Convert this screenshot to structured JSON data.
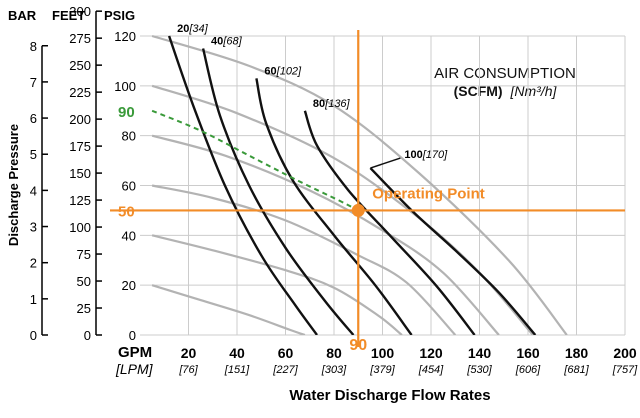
{
  "chart_data": {
    "type": "line",
    "title": "AIR CONSUMPTION",
    "subtitle_unit": "(SCFM)",
    "subtitle_metric": "[Nm³/h]",
    "xlabel": "Water Discharge Flow Rates",
    "ylabel": "Discharge Pressure",
    "x_unit_label": "GPM",
    "x_metric_unit_label": "[LPM]",
    "x_range": [
      0,
      200
    ],
    "y_range_psig": [
      0,
      120
    ],
    "x_ticks": [
      {
        "gpm": 20,
        "lpm": "[76]"
      },
      {
        "gpm": 40,
        "lpm": "[151]"
      },
      {
        "gpm": 60,
        "lpm": "[227]"
      },
      {
        "gpm": 80,
        "lpm": "[303]"
      },
      {
        "gpm": 100,
        "lpm": "[379]"
      },
      {
        "gpm": 120,
        "lpm": "[454]"
      },
      {
        "gpm": 140,
        "lpm": "[530]"
      },
      {
        "gpm": 160,
        "lpm": "[606]"
      },
      {
        "gpm": 180,
        "lpm": "[681]"
      },
      {
        "gpm": 200,
        "lpm": "[757]"
      }
    ],
    "psig_ticks": [
      0,
      20,
      40,
      60,
      80,
      100,
      120
    ],
    "side_axes": [
      {
        "title": "BAR",
        "max": 8.27,
        "ticks": [
          0,
          1,
          2,
          3,
          4,
          5,
          6,
          7,
          8
        ]
      },
      {
        "title": "FEET",
        "max": 277,
        "ticks": [
          0,
          25,
          50,
          75,
          100,
          125,
          150,
          175,
          200,
          225,
          250,
          275,
          300
        ]
      },
      {
        "title": "PSIG",
        "max": 120,
        "ticks": []
      }
    ],
    "pressure_curves": [
      {
        "psig": 120,
        "points": [
          [
            5,
            120
          ],
          [
            45,
            108
          ],
          [
            80,
            92
          ],
          [
            115,
            65
          ],
          [
            152,
            30
          ],
          [
            176,
            0
          ]
        ]
      },
      {
        "psig": 100,
        "points": [
          [
            5,
            100
          ],
          [
            40,
            89
          ],
          [
            80,
            71
          ],
          [
            115,
            47
          ],
          [
            140,
            25
          ],
          [
            162,
            0
          ]
        ]
      },
      {
        "psig": 80,
        "points": [
          [
            5,
            80
          ],
          [
            35,
            72
          ],
          [
            70,
            58
          ],
          [
            100,
            42
          ],
          [
            125,
            25
          ],
          [
            148,
            0
          ]
        ]
      },
      {
        "psig": 60,
        "points": [
          [
            5,
            60
          ],
          [
            30,
            55
          ],
          [
            60,
            46
          ],
          [
            90,
            32
          ],
          [
            110,
            21
          ],
          [
            130,
            0
          ]
        ]
      },
      {
        "psig": 40,
        "points": [
          [
            5,
            40
          ],
          [
            30,
            34
          ],
          [
            60,
            26
          ],
          [
            80,
            19
          ],
          [
            98,
            8
          ],
          [
            108,
            0
          ]
        ]
      },
      {
        "psig": 20,
        "points": [
          [
            5,
            20
          ],
          [
            25,
            14
          ],
          [
            45,
            8
          ],
          [
            62,
            2
          ],
          [
            68,
            0
          ]
        ]
      }
    ],
    "air_curves": [
      {
        "label": "20",
        "metric": "[34]",
        "points": [
          [
            12,
            120
          ],
          [
            22,
            92
          ],
          [
            35,
            60
          ],
          [
            50,
            32
          ],
          [
            64,
            12
          ],
          [
            73,
            0
          ]
        ]
      },
      {
        "label": "40",
        "metric": "[68]",
        "points": [
          [
            26,
            115
          ],
          [
            33,
            88
          ],
          [
            45,
            60
          ],
          [
            60,
            35
          ],
          [
            76,
            14
          ],
          [
            88,
            0
          ]
        ]
      },
      {
        "label": "60",
        "metric": "[102]",
        "points": [
          [
            48,
            103
          ],
          [
            52,
            85
          ],
          [
            63,
            62
          ],
          [
            80,
            40
          ],
          [
            97,
            20
          ],
          [
            112,
            0
          ]
        ]
      },
      {
        "label": "80",
        "metric": "[136]",
        "points": [
          [
            68,
            90
          ],
          [
            73,
            76
          ],
          [
            86,
            58
          ],
          [
            103,
            40
          ],
          [
            122,
            20
          ],
          [
            138,
            0
          ]
        ]
      },
      {
        "label": "100",
        "metric": "[170]",
        "points": [
          [
            95,
            67
          ],
          [
            112,
            50
          ],
          [
            130,
            34
          ],
          [
            148,
            17
          ],
          [
            163,
            0
          ]
        ]
      }
    ],
    "operating_point": {
      "label": "Operating Point",
      "gpm": 90,
      "psig": 50,
      "gpm_label": "90",
      "psig_label": "50",
      "air_psig_label": "90",
      "air_curve_points": [
        [
          5,
          90
        ],
        [
          25,
          82
        ],
        [
          45,
          72
        ],
        [
          65,
          62
        ],
        [
          82,
          54
        ],
        [
          90,
          50
        ]
      ]
    },
    "colors": {
      "pressure_curve": "#b3b3b3",
      "air_curve": "#111111",
      "highlight": "#f28c28",
      "air_pressure": "#3a9a3a",
      "grid": "#cccccc",
      "axis": "#000000"
    }
  }
}
